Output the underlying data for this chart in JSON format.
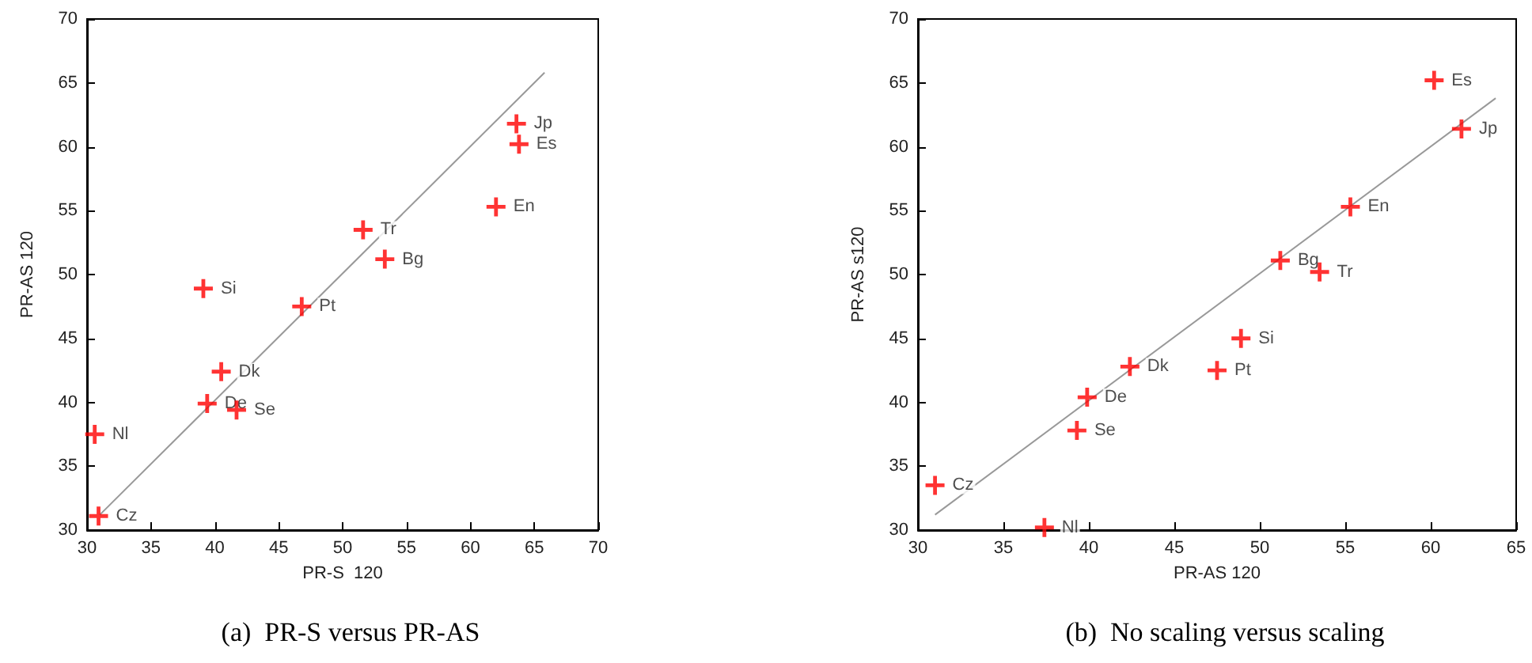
{
  "chart_data": [
    {
      "type": "scatter",
      "title": "(a)  PR-S versus PR-AS",
      "xlabel": "PR-S  120",
      "ylabel": "PR-AS 120",
      "xlim": [
        30,
        70
      ],
      "ylim": [
        30,
        70
      ],
      "xticks": [
        30,
        35,
        40,
        45,
        50,
        55,
        60,
        65,
        70
      ],
      "yticks": [
        30,
        35,
        40,
        45,
        50,
        55,
        60,
        65,
        70
      ],
      "marker": "cross",
      "series": [
        {
          "color": "#ff0000",
          "x": [
            30.6,
            30.9,
            39.1,
            39.4,
            40.5,
            41.7,
            46.8,
            51.6,
            53.3,
            62,
            63.6,
            63.8
          ],
          "values": [
            37.5,
            31.1,
            48.9,
            39.9,
            42.4,
            39.4,
            47.5,
            53.5,
            51.2,
            55.3,
            61.8,
            60.2
          ]
        },
        {
          "type": "line",
          "color": "#999999",
          "marker": "none",
          "x": [
            31,
            65.8
          ],
          "values": [
            31.2,
            65.8
          ]
        }
      ],
      "annotations": [
        {
          "text": "Nl",
          "x": 30.6,
          "y": 37.5
        },
        {
          "text": "Cz",
          "x": 30.9,
          "y": 31.1
        },
        {
          "text": "Si",
          "x": 39.1,
          "y": 48.9
        },
        {
          "text": "De",
          "x": 39.4,
          "y": 39.9
        },
        {
          "text": "Dk",
          "x": 40.5,
          "y": 42.4
        },
        {
          "text": "Se",
          "x": 41.7,
          "y": 39.4
        },
        {
          "text": "Pt",
          "x": 46.8,
          "y": 47.5
        },
        {
          "text": "Tr",
          "x": 51.6,
          "y": 53.5
        },
        {
          "text": "Bg",
          "x": 53.3,
          "y": 51.2
        },
        {
          "text": "En",
          "x": 62,
          "y": 55.3
        },
        {
          "text": "Jp",
          "x": 63.6,
          "y": 61.8
        },
        {
          "text": "Es",
          "x": 63.8,
          "y": 60.2
        }
      ]
    },
    {
      "type": "scatter",
      "title": "(b)  No scaling versus scaling",
      "xlabel": "PR-AS 120",
      "ylabel": "PR-AS s120",
      "xlim": [
        30,
        65
      ],
      "ylim": [
        30,
        70
      ],
      "xticks": [
        30,
        35,
        40,
        45,
        50,
        55,
        60,
        65
      ],
      "yticks": [
        30,
        35,
        40,
        45,
        50,
        55,
        60,
        65,
        70
      ],
      "marker": "cross",
      "series": [
        {
          "color": "#ff0000",
          "x": [
            31,
            37.4,
            39.3,
            39.9,
            42.4,
            47.5,
            48.9,
            51.2,
            53.5,
            55.3,
            60.2,
            61.8
          ],
          "values": [
            33.5,
            30.2,
            37.8,
            40.4,
            42.8,
            42.5,
            45,
            51.1,
            50.2,
            55.3,
            65.2,
            61.4
          ]
        },
        {
          "type": "line",
          "color": "#999999",
          "marker": "none",
          "x": [
            31,
            63.8
          ],
          "values": [
            31.2,
            63.8
          ]
        }
      ],
      "annotations": [
        {
          "text": "Cz",
          "x": 31,
          "y": 33.5
        },
        {
          "text": "Nl",
          "x": 37.4,
          "y": 30.2
        },
        {
          "text": "Se",
          "x": 39.3,
          "y": 37.8
        },
        {
          "text": "De",
          "x": 39.9,
          "y": 40.4
        },
        {
          "text": "Dk",
          "x": 42.4,
          "y": 42.8
        },
        {
          "text": "Pt",
          "x": 47.5,
          "y": 42.5
        },
        {
          "text": "Si",
          "x": 48.9,
          "y": 45
        },
        {
          "text": "Bg",
          "x": 51.2,
          "y": 51.1
        },
        {
          "text": "Tr",
          "x": 53.5,
          "y": 50.2
        },
        {
          "text": "En",
          "x": 55.3,
          "y": 55.3
        },
        {
          "text": "Es",
          "x": 60.2,
          "y": 65.2
        },
        {
          "text": "Jp",
          "x": 61.8,
          "y": 61.4
        }
      ]
    }
  ]
}
